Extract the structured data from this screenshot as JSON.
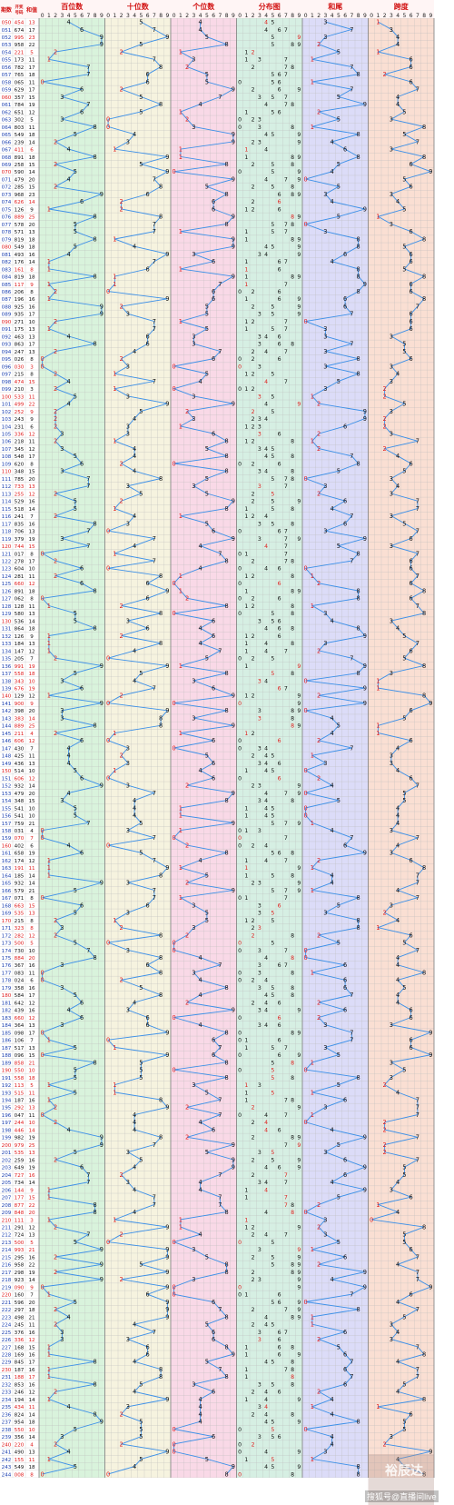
{
  "header": {
    "issue_label": "期数",
    "draw_label": "开奖号码",
    "sum_label": "和值",
    "sections": [
      "百位数",
      "十位数",
      "个位数",
      "分布图",
      "和尾",
      "跨度"
    ],
    "digits": [
      "0",
      "1",
      "2",
      "3",
      "4",
      "5",
      "6",
      "7",
      "8",
      "9"
    ]
  },
  "watermark": {
    "brand": "裕辰达",
    "credit": "搜狐号@直播间live"
  },
  "colors": {
    "hundreds_bg": "#d9f3dc",
    "tens_bg": "#f6f3df",
    "ones_bg": "#f9d9e7",
    "dist_bg": "#d6efe3",
    "tail_bg": "#dcdcf8",
    "span_bg": "#fadfd3",
    "header_text": "#d21414",
    "trend_line": "#3a8fe8",
    "highlight": "#e01b1b",
    "grid": "#bdbdbd"
  },
  "chart_data": {
    "type": "table",
    "issue_start": 50,
    "draws": [
      "454",
      "674",
      "995",
      "958",
      "221",
      "173",
      "782",
      "765",
      "065",
      "629",
      "357",
      "784",
      "651",
      "302",
      "803",
      "549",
      "239",
      "411",
      "891",
      "258",
      "590",
      "479",
      "285",
      "968",
      "626",
      "126",
      "889",
      "578",
      "571",
      "819",
      "549",
      "493",
      "176",
      "161",
      "819",
      "117",
      "206",
      "196",
      "925",
      "935",
      "271",
      "175",
      "463",
      "863",
      "247",
      "026",
      "030",
      "215",
      "474",
      "210",
      "533",
      "499",
      "252",
      "243",
      "231",
      "336",
      "218",
      "345",
      "548",
      "620",
      "348",
      "785",
      "733",
      "255",
      "529",
      "518",
      "241",
      "835",
      "706",
      "379",
      "744",
      "017",
      "278",
      "604",
      "281",
      "660",
      "891",
      "062",
      "128",
      "580",
      "536",
      "864",
      "126",
      "184",
      "147",
      "205",
      "991",
      "558",
      "343",
      "676",
      "129",
      "900",
      "398",
      "383",
      "889",
      "211",
      "606",
      "430",
      "425",
      "436",
      "514",
      "606",
      "932",
      "479",
      "348",
      "541",
      "541",
      "759",
      "031",
      "070",
      "402",
      "658",
      "174",
      "191",
      "185",
      "932",
      "579",
      "071",
      "663",
      "535",
      "215",
      "323",
      "282",
      "500",
      "730",
      "884",
      "367",
      "083",
      "024",
      "358",
      "584",
      "642",
      "439",
      "660",
      "364",
      "098",
      "106",
      "517",
      "096",
      "858",
      "550",
      "558",
      "113",
      "515",
      "187",
      "292",
      "047",
      "244",
      "446",
      "982",
      "979",
      "535",
      "259",
      "649",
      "727",
      "734",
      "144",
      "177",
      "877",
      "848",
      "111",
      "291",
      "724",
      "500",
      "993",
      "295",
      "958",
      "298",
      "923",
      "090",
      "160",
      "596",
      "297",
      "498",
      "245",
      "376",
      "336",
      "168",
      "169",
      "845",
      "187",
      "188",
      "853",
      "246",
      "194",
      "434",
      "824",
      "954",
      "550",
      "356",
      "220",
      "490",
      "155",
      "549",
      "008"
    ]
  }
}
